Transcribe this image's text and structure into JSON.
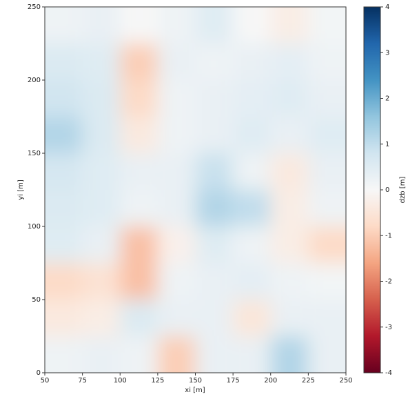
{
  "chart_data": {
    "type": "heatmap",
    "x_label": "xi [m]",
    "y_label": "yi [m]",
    "x": [
      62.5,
      87.5,
      112.5,
      137.5,
      162.5,
      187.5,
      212.5,
      237.5
    ],
    "y": [
      12.5,
      37.5,
      62.5,
      87.5,
      112.5,
      137.5,
      162.5,
      187.5,
      212.5,
      237.5
    ],
    "z": [
      [
        0.2,
        0.3,
        0.2,
        -1.0,
        0.3,
        0.3,
        1.2,
        0.3
      ],
      [
        -0.4,
        -0.3,
        0.6,
        0.3,
        0.3,
        -0.5,
        0.3,
        0.3
      ],
      [
        -0.8,
        -0.6,
        -1.2,
        0.2,
        0.3,
        0.4,
        0.2,
        0.1
      ],
      [
        0.5,
        0.3,
        -1.2,
        -0.2,
        0.5,
        0.2,
        -0.3,
        -0.8
      ],
      [
        0.6,
        0.5,
        0.2,
        0.3,
        1.2,
        1.0,
        -0.3,
        0.2
      ],
      [
        0.7,
        0.5,
        0.3,
        0.3,
        0.9,
        0.2,
        -0.4,
        0.3
      ],
      [
        1.2,
        0.6,
        -0.4,
        0.2,
        0.3,
        0.5,
        0.3,
        0.5
      ],
      [
        0.8,
        0.6,
        -0.8,
        0.2,
        0.3,
        0.4,
        0.5,
        0.3
      ],
      [
        0.6,
        0.5,
        -1.0,
        0.3,
        0.2,
        0.3,
        0.4,
        0.2
      ],
      [
        0.2,
        0.3,
        0.0,
        0.2,
        0.5,
        0.0,
        -0.3,
        0.1
      ]
    ],
    "xlim": [
      50,
      250
    ],
    "ylim": [
      0,
      250
    ],
    "xticks": [
      50,
      75,
      100,
      125,
      150,
      175,
      200,
      225,
      250
    ],
    "yticks": [
      0,
      50,
      100,
      150,
      200,
      250
    ],
    "colormap": "RdBu",
    "colorbar": {
      "label": "dzb [m]",
      "lim": [
        -4,
        4
      ],
      "ticks": [
        -4,
        -3,
        -2,
        -1,
        0,
        1,
        2,
        3,
        4
      ]
    }
  }
}
